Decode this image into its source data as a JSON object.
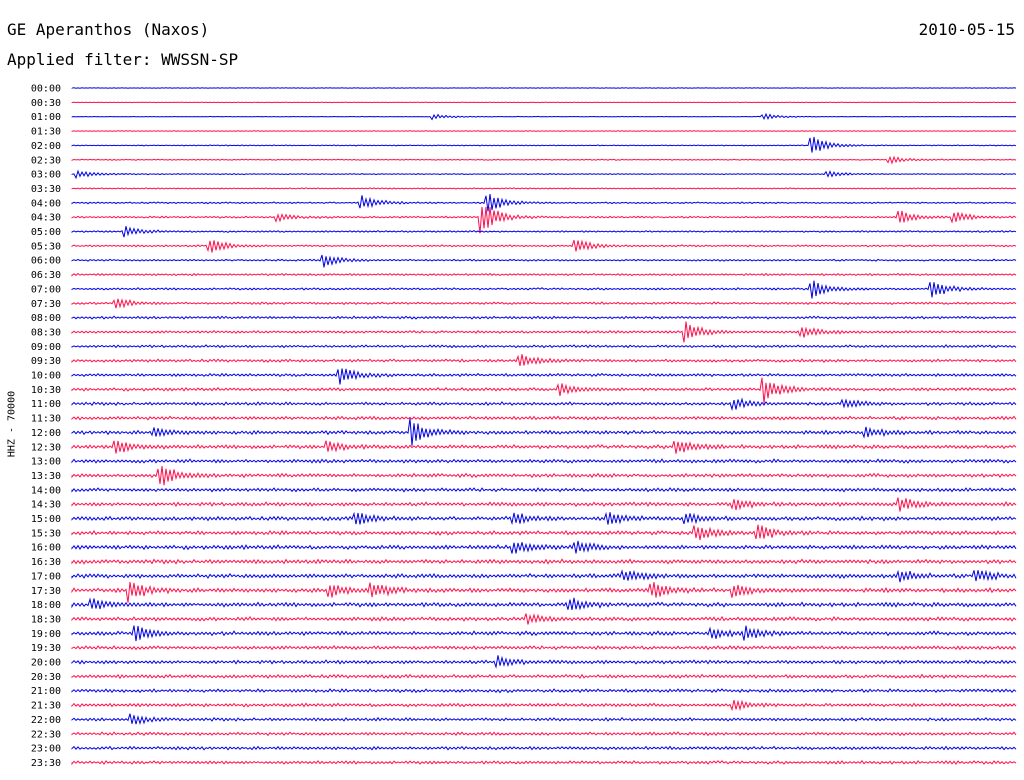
{
  "header": {
    "title": "GE Aperanthos (Naxos)",
    "date": "2010-05-15",
    "filter": "Applied filter: WWSSN-SP"
  },
  "colors": {
    "odd": "#0000e6",
    "even": "#ff0f4b"
  },
  "chart_data": {
    "type": "line",
    "title": "GE Aperanthos (Naxos)",
    "ylabel": "HHZ - 70000",
    "rows": [
      "00:00",
      "00:30",
      "01:00",
      "01:30",
      "02:00",
      "02:30",
      "03:00",
      "03:30",
      "04:00",
      "04:30",
      "05:00",
      "05:30",
      "06:00",
      "06:30",
      "07:00",
      "07:30",
      "08:00",
      "08:30",
      "09:00",
      "09:30",
      "10:00",
      "10:30",
      "11:00",
      "11:30",
      "12:00",
      "12:30",
      "13:00",
      "13:30",
      "14:00",
      "14:30",
      "15:00",
      "15:30",
      "16:00",
      "16:30",
      "17:00",
      "17:30",
      "18:00",
      "18:30",
      "19:00",
      "19:30",
      "20:00",
      "20:30",
      "21:00",
      "21:30",
      "22:00",
      "22:30",
      "23:00",
      "23:30"
    ],
    "row_noise_level": [
      0.2,
      0.2,
      0.2,
      0.3,
      0.4,
      0.4,
      0.4,
      0.5,
      0.6,
      0.7,
      0.7,
      0.7,
      0.7,
      0.8,
      0.8,
      0.9,
      1.0,
      1.0,
      1.0,
      1.1,
      1.1,
      1.2,
      1.2,
      1.3,
      1.4,
      1.4,
      1.4,
      1.4,
      1.4,
      1.5,
      1.5,
      1.5,
      1.6,
      1.6,
      1.6,
      1.6,
      1.6,
      1.5,
      1.5,
      1.4,
      1.4,
      1.3,
      1.3,
      1.3,
      1.2,
      1.2,
      1.2,
      1.2
    ],
    "events": [
      {
        "row": "01:00",
        "minute": 11.5,
        "amplitude": 3
      },
      {
        "row": "01:00",
        "minute": 22,
        "amplitude": 3
      },
      {
        "row": "02:00",
        "minute": 23.5,
        "amplitude": 10
      },
      {
        "row": "02:30",
        "minute": 26,
        "amplitude": 4
      },
      {
        "row": "03:00",
        "minute": 0.2,
        "amplitude": 4
      },
      {
        "row": "03:00",
        "minute": 24,
        "amplitude": 3
      },
      {
        "row": "04:00",
        "minute": 9.2,
        "amplitude": 8
      },
      {
        "row": "04:00",
        "minute": 13.2,
        "amplitude": 10
      },
      {
        "row": "04:30",
        "minute": 13,
        "amplitude": 18
      },
      {
        "row": "04:30",
        "minute": 26.3,
        "amplitude": 7
      },
      {
        "row": "04:30",
        "minute": 28,
        "amplitude": 6
      },
      {
        "row": "04:30",
        "minute": 6.5,
        "amplitude": 4
      },
      {
        "row": "05:00",
        "minute": 1.7,
        "amplitude": 5
      },
      {
        "row": "05:30",
        "minute": 4.4,
        "amplitude": 7
      },
      {
        "row": "05:30",
        "minute": 16,
        "amplitude": 7
      },
      {
        "row": "06:00",
        "minute": 8,
        "amplitude": 7
      },
      {
        "row": "07:00",
        "minute": 23.5,
        "amplitude": 9
      },
      {
        "row": "07:00",
        "minute": 27.3,
        "amplitude": 11
      },
      {
        "row": "07:30",
        "minute": 1.4,
        "amplitude": 5
      },
      {
        "row": "08:30",
        "minute": 19.5,
        "amplitude": 10
      },
      {
        "row": "08:30",
        "minute": 23.2,
        "amplitude": 6
      },
      {
        "row": "09:30",
        "minute": 14.2,
        "amplitude": 7
      },
      {
        "row": "10:00",
        "minute": 8.5,
        "amplitude": 9
      },
      {
        "row": "10:30",
        "minute": 15.5,
        "amplitude": 6
      },
      {
        "row": "10:30",
        "minute": 22,
        "amplitude": 13
      },
      {
        "row": "11:00",
        "minute": 21,
        "amplitude": 6
      },
      {
        "row": "11:00",
        "minute": 24.5,
        "amplitude": 5
      },
      {
        "row": "12:00",
        "minute": 10.8,
        "amplitude": 13
      },
      {
        "row": "12:00",
        "minute": 25.2,
        "amplitude": 6
      },
      {
        "row": "12:00",
        "minute": 2.6,
        "amplitude": 4
      },
      {
        "row": "12:30",
        "minute": 1.4,
        "amplitude": 8
      },
      {
        "row": "12:30",
        "minute": 8.1,
        "amplitude": 6
      },
      {
        "row": "12:30",
        "minute": 19.2,
        "amplitude": 9
      },
      {
        "row": "13:30",
        "minute": 2.8,
        "amplitude": 11
      },
      {
        "row": "14:30",
        "minute": 21,
        "amplitude": 6
      },
      {
        "row": "14:30",
        "minute": 26.3,
        "amplitude": 7
      },
      {
        "row": "15:00",
        "minute": 9,
        "amplitude": 7
      },
      {
        "row": "15:00",
        "minute": 14,
        "amplitude": 6
      },
      {
        "row": "15:00",
        "minute": 17,
        "amplitude": 6
      },
      {
        "row": "15:00",
        "minute": 19.5,
        "amplitude": 5
      },
      {
        "row": "15:30",
        "minute": 19.8,
        "amplitude": 9
      },
      {
        "row": "15:30",
        "minute": 21.8,
        "amplitude": 8
      },
      {
        "row": "16:00",
        "minute": 14,
        "amplitude": 7
      },
      {
        "row": "16:00",
        "minute": 16,
        "amplitude": 6
      },
      {
        "row": "17:00",
        "minute": 17.5,
        "amplitude": 7
      },
      {
        "row": "17:00",
        "minute": 26.3,
        "amplitude": 6
      },
      {
        "row": "17:00",
        "minute": 28.7,
        "amplitude": 7
      },
      {
        "row": "17:30",
        "minute": 1.8,
        "amplitude": 11
      },
      {
        "row": "17:30",
        "minute": 8.2,
        "amplitude": 7
      },
      {
        "row": "17:30",
        "minute": 9.5,
        "amplitude": 8
      },
      {
        "row": "17:30",
        "minute": 18.4,
        "amplitude": 9
      },
      {
        "row": "17:30",
        "minute": 21,
        "amplitude": 7
      },
      {
        "row": "18:00",
        "minute": 0.6,
        "amplitude": 6
      },
      {
        "row": "18:00",
        "minute": 15.8,
        "amplitude": 7
      },
      {
        "row": "18:30",
        "minute": 14.5,
        "amplitude": 5
      },
      {
        "row": "19:00",
        "minute": 2,
        "amplitude": 9
      },
      {
        "row": "19:00",
        "minute": 20.3,
        "amplitude": 7
      },
      {
        "row": "19:00",
        "minute": 21.4,
        "amplitude": 6
      },
      {
        "row": "20:00",
        "minute": 13.5,
        "amplitude": 6
      },
      {
        "row": "21:30",
        "minute": 21,
        "amplitude": 5
      },
      {
        "row": "22:00",
        "minute": 1.9,
        "amplitude": 5
      }
    ]
  }
}
